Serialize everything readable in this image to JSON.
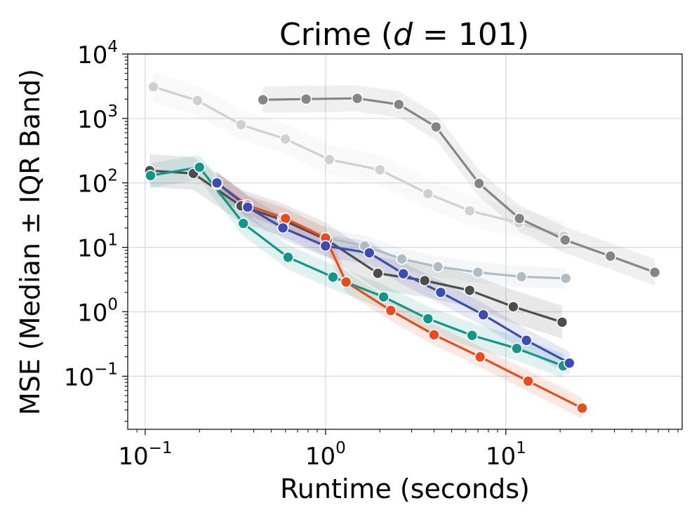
{
  "chart_data": {
    "type": "line",
    "title_prefix": "Crime (",
    "title_var": "d",
    "title_suffix": " = 101)",
    "xlabel": "Runtime (seconds)",
    "ylabel": "MSE (Median ± IQR Band)",
    "x_scale": "log",
    "y_scale": "log",
    "xlim": [
      0.08,
      95
    ],
    "ylim": [
      0.015,
      10000
    ],
    "x_ticks": [
      {
        "value": 0.1,
        "base": "10",
        "exp": "−1"
      },
      {
        "value": 1,
        "base": "10",
        "exp": "0"
      },
      {
        "value": 10,
        "base": "10",
        "exp": "1"
      }
    ],
    "y_ticks": [
      {
        "value": 0.1,
        "base": "10",
        "exp": "−1"
      },
      {
        "value": 1,
        "base": "10",
        "exp": "0"
      },
      {
        "value": 10,
        "base": "10",
        "exp": "1"
      },
      {
        "value": 100,
        "base": "10",
        "exp": "2"
      },
      {
        "value": 1000,
        "base": "10",
        "exp": "3"
      },
      {
        "value": 10000,
        "base": "10",
        "exp": "4"
      }
    ],
    "grid": true,
    "series": [
      {
        "color": "#d0d0d0",
        "x": [
          0.111,
          0.195,
          0.34,
          0.6,
          1.05,
          2.0,
          3.7,
          6.3,
          11.8,
          21.0
        ],
        "y": [
          3100,
          1900,
          800,
          480,
          230,
          160,
          68,
          37,
          24,
          15
        ],
        "band_factor": 1.7
      },
      {
        "color": "#858585",
        "x": [
          0.45,
          0.78,
          1.5,
          2.55,
          4.1,
          7.1,
          11.9,
          21.3,
          38.0,
          67.0
        ],
        "y": [
          1950,
          2000,
          2050,
          1650,
          740,
          98,
          28,
          13,
          7.3,
          4.1
        ],
        "band_factor": 1.6
      },
      {
        "color": "#aebdc4",
        "x": [
          0.25,
          0.36,
          0.58,
          1.0,
          1.65,
          2.65,
          4.2,
          7.0,
          12.2,
          21.5
        ],
        "y": [
          95,
          45,
          28,
          14,
          10.5,
          6.6,
          5.0,
          4.1,
          3.5,
          3.3
        ],
        "band_factor": 1.45
      },
      {
        "color": "#4d4d4d",
        "x": [
          0.106,
          0.185,
          0.34,
          0.59,
          1.02,
          1.95,
          3.55,
          6.3,
          11.0,
          20.5
        ],
        "y": [
          155,
          140,
          44,
          26,
          13,
          3.95,
          3.05,
          2.15,
          1.2,
          0.69
        ],
        "band_factor": 1.8
      },
      {
        "color": "#e64c1e",
        "x": [
          0.25,
          0.37,
          0.6,
          1.0,
          1.3,
          2.3,
          4.0,
          7.2,
          13.3,
          26.5
        ],
        "y": [
          100,
          45,
          28,
          14,
          2.9,
          1.05,
          0.44,
          0.2,
          0.084,
          0.032
        ],
        "band_factor": 1.45
      },
      {
        "color": "#129688",
        "x": [
          0.107,
          0.2,
          0.35,
          0.62,
          1.1,
          2.1,
          3.7,
          6.5,
          11.5,
          20.8
        ],
        "y": [
          130,
          175,
          23.5,
          7.0,
          3.45,
          1.7,
          0.78,
          0.43,
          0.27,
          0.145
        ],
        "band_factor": 1.55
      },
      {
        "color": "#3b4cb3",
        "x": [
          0.25,
          0.37,
          0.58,
          1.0,
          1.75,
          2.7,
          4.35,
          7.5,
          13.0,
          22.5
        ],
        "y": [
          100,
          42,
          20,
          10.5,
          8.2,
          3.9,
          2.0,
          0.9,
          0.36,
          0.16
        ],
        "band_factor": 1.5
      }
    ]
  }
}
